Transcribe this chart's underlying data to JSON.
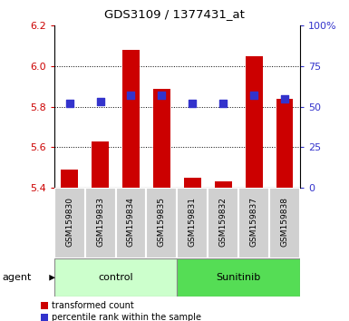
{
  "title": "GDS3109 / 1377431_at",
  "samples": [
    "GSM159830",
    "GSM159833",
    "GSM159834",
    "GSM159835",
    "GSM159831",
    "GSM159832",
    "GSM159837",
    "GSM159838"
  ],
  "red_values": [
    5.49,
    5.63,
    6.08,
    5.89,
    5.45,
    5.43,
    6.05,
    5.84
  ],
  "blue_values": [
    52,
    53,
    57,
    57,
    52,
    52,
    57,
    55
  ],
  "baseline": 5.4,
  "ylim_left": [
    5.4,
    6.2
  ],
  "ylim_right": [
    0,
    100
  ],
  "yticks_left": [
    5.4,
    5.6,
    5.8,
    6.0,
    6.2
  ],
  "yticks_right": [
    0,
    25,
    50,
    75,
    100
  ],
  "ytick_labels_right": [
    "0",
    "25",
    "50",
    "75",
    "100%"
  ],
  "gridlines": [
    5.6,
    5.8,
    6.0
  ],
  "bar_bg_color": "#d0d0d0",
  "plot_bg_color": "#ffffff",
  "red_color": "#cc0000",
  "blue_color": "#3333cc",
  "agent_label": "agent",
  "control_label": "control",
  "sunitinib_label": "Sunitinib",
  "control_color": "#ccffcc",
  "sunitinib_color": "#55dd55",
  "legend1": "transformed count",
  "legend2": "percentile rank within the sample",
  "bar_width": 0.55,
  "blue_square_size": 28,
  "figsize": [
    3.85,
    3.54
  ],
  "dpi": 100
}
